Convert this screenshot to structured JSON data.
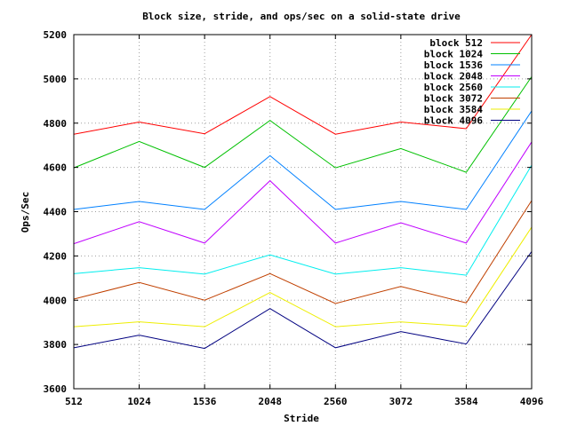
{
  "chart_data": {
    "type": "line",
    "title": "Block size, stride, and ops/sec on a solid-state drive",
    "xlabel": "Stride",
    "ylabel": "Ops/Sec",
    "x": [
      512,
      1024,
      1536,
      2048,
      2560,
      3072,
      3584,
      4096
    ],
    "xticks": [
      "512",
      "1024",
      "1536",
      "2048",
      "2560",
      "3072",
      "3584",
      "4096"
    ],
    "yticks": [
      "3600",
      "3800",
      "4000",
      "4200",
      "4400",
      "4600",
      "4800",
      "5000",
      "5200"
    ],
    "xlim": [
      512,
      4096
    ],
    "ylim": [
      3600,
      5200
    ],
    "grid": true,
    "legend_position": "top-right",
    "series": [
      {
        "name": "block 512",
        "color": "#ff0000",
        "values": [
          4750,
          4805,
          4752,
          4920,
          4750,
          4805,
          4775,
          5200
        ]
      },
      {
        "name": "block 1024",
        "color": "#00c000",
        "values": [
          4598,
          4717,
          4600,
          4812,
          4598,
          4685,
          4578,
          5010
        ]
      },
      {
        "name": "block 1536",
        "color": "#0080ff",
        "values": [
          4410,
          4446,
          4410,
          4653,
          4410,
          4446,
          4410,
          4855
        ]
      },
      {
        "name": "block 2048",
        "color": "#c000ff",
        "values": [
          4255,
          4355,
          4258,
          4540,
          4258,
          4350,
          4258,
          4715
        ]
      },
      {
        "name": "block 2560",
        "color": "#00eeee",
        "values": [
          4120,
          4147,
          4118,
          4205,
          4118,
          4147,
          4113,
          4610
        ]
      },
      {
        "name": "block 3072",
        "color": "#c04000",
        "values": [
          4005,
          4080,
          4000,
          4120,
          3985,
          4062,
          3988,
          4450
        ]
      },
      {
        "name": "block 3584",
        "color": "#eeee00",
        "values": [
          3880,
          3902,
          3880,
          4035,
          3880,
          3902,
          3882,
          4330
        ]
      },
      {
        "name": "block 4096",
        "color": "#000080",
        "values": [
          3785,
          3842,
          3782,
          3962,
          3785,
          3858,
          3802,
          4220
        ]
      }
    ]
  }
}
